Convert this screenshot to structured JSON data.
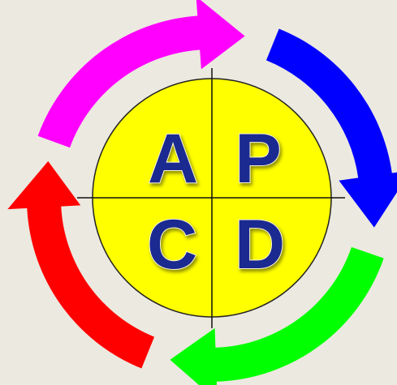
{
  "quadrants": [
    "A",
    "P",
    "C",
    "D"
  ]
}
